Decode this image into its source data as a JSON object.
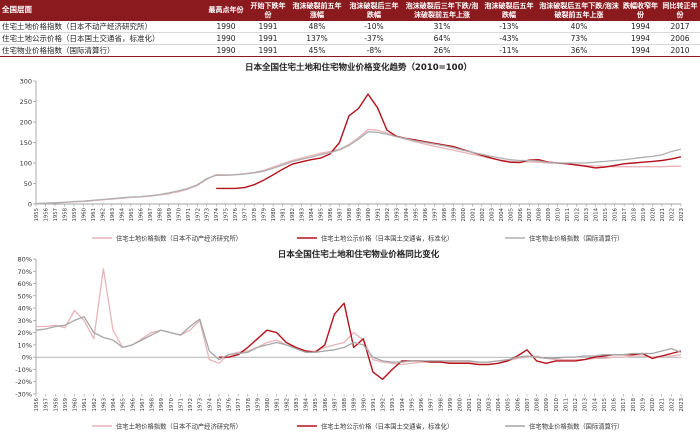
{
  "table": {
    "headers": [
      "全国层面",
      "最高点年份",
      "开始下跌年份",
      "泡沫破裂前五年涨幅",
      "泡沫破裂后三年跌幅",
      "泡沫破裂后三年下跌/泡沫破裂前五年上涨",
      "泡沫破裂后五年跌幅",
      "泡沫破裂后五年下跌/泡沫破裂前五年上涨",
      "跌幅收窄年份",
      "同比转正年份"
    ],
    "rows": [
      [
        "住宅土地价格指数（日本不动产经济研究所）",
        "1990",
        "1991",
        "48%",
        "-10%",
        "31%",
        "-13%",
        "40%",
        "1994",
        "2017"
      ],
      [
        "住宅土地公示价格（日本国土交通省，标准化）",
        "1990",
        "1991",
        "137%",
        "-37%",
        "64%",
        "-43%",
        "73%",
        "1994",
        "2006"
      ],
      [
        "住宅物业价格指数（国际清算行）",
        "1990",
        "1991",
        "45%",
        "-8%",
        "26%",
        "-11%",
        "36%",
        "1994",
        "2010"
      ]
    ]
  },
  "chart_data": [
    {
      "type": "line",
      "title": "日本全国住宅土地和住宅物业价格变化趋势（2010=100）",
      "xlabel": "",
      "ylabel": "",
      "ylim": [
        0,
        300
      ],
      "yticks": [
        0,
        50,
        100,
        150,
        200,
        250,
        300
      ],
      "ytick_labels": [
        "0",
        "50",
        "100",
        "150",
        "200",
        "250",
        "300"
      ],
      "x": [
        1955,
        1956,
        1957,
        1958,
        1959,
        1960,
        1961,
        1962,
        1963,
        1964,
        1965,
        1966,
        1967,
        1968,
        1969,
        1970,
        1971,
        1972,
        1973,
        1974,
        1975,
        1976,
        1977,
        1978,
        1979,
        1980,
        1981,
        1982,
        1983,
        1984,
        1985,
        1986,
        1987,
        1988,
        1989,
        1990,
        1991,
        1992,
        1993,
        1994,
        1995,
        1996,
        1997,
        1998,
        1999,
        2000,
        2001,
        2002,
        2003,
        2004,
        2005,
        2006,
        2007,
        2008,
        2009,
        2010,
        2011,
        2012,
        2013,
        2014,
        2015,
        2016,
        2017,
        2018,
        2019,
        2020,
        2021,
        2022,
        2023
      ],
      "grid": false,
      "legend_position": "bottom",
      "series": [
        {
          "name": "住宅土地价格指数（日本不动产经济研究所）",
          "color": "#e8b4b8",
          "values": [
            1,
            2,
            3,
            4,
            5,
            6,
            8,
            10,
            12,
            14,
            16,
            17,
            19,
            22,
            25,
            30,
            36,
            45,
            60,
            72,
            71,
            72,
            74,
            77,
            82,
            90,
            98,
            106,
            112,
            118,
            124,
            128,
            134,
            145,
            162,
            182,
            180,
            173,
            165,
            158,
            152,
            146,
            141,
            136,
            131,
            126,
            121,
            116,
            111,
            107,
            104,
            103,
            103,
            102,
            100,
            100,
            98,
            96,
            94,
            93,
            92,
            91,
            91,
            91,
            91,
            91,
            91,
            92,
            92
          ]
        },
        {
          "name": "住宅土地公示价格（日本国土交通省，标准化）",
          "color": "#b3121b",
          "values": [
            null,
            null,
            null,
            null,
            null,
            null,
            null,
            null,
            null,
            null,
            null,
            null,
            null,
            null,
            null,
            null,
            null,
            null,
            null,
            38,
            38,
            38,
            40,
            47,
            58,
            71,
            85,
            97,
            103,
            108,
            112,
            122,
            150,
            215,
            233,
            268,
            235,
            180,
            165,
            160,
            156,
            152,
            148,
            144,
            140,
            133,
            126,
            119,
            112,
            106,
            102,
            101,
            107,
            108,
            102,
            100,
            98,
            95,
            92,
            88,
            90,
            94,
            98,
            100,
            102,
            104,
            106,
            110,
            115
          ]
        },
        {
          "name": "住宅物业价格指数（国际清算行）",
          "color": "#b0b0b0",
          "values": [
            1,
            2,
            3,
            4,
            6,
            7,
            9,
            11,
            13,
            15,
            17,
            18,
            20,
            23,
            27,
            32,
            38,
            47,
            62,
            70,
            70,
            71,
            73,
            76,
            80,
            87,
            95,
            103,
            109,
            114,
            120,
            125,
            132,
            143,
            158,
            176,
            175,
            170,
            164,
            159,
            154,
            150,
            146,
            142,
            137,
            131,
            126,
            121,
            116,
            112,
            108,
            106,
            106,
            105,
            101,
            100,
            100,
            100,
            100,
            102,
            104,
            106,
            108,
            111,
            114,
            116,
            120,
            128,
            134
          ]
        }
      ]
    },
    {
      "type": "line",
      "title": "日本全国住宅土地和住宅物业价格同比变化",
      "xlabel": "",
      "ylabel": "",
      "ylim": [
        -30,
        80
      ],
      "yticks": [
        -30,
        -20,
        -10,
        0,
        10,
        20,
        30,
        40,
        50,
        60,
        70,
        80
      ],
      "ytick_labels": [
        "-30%",
        "-20%",
        "-10%",
        "0%",
        "10%",
        "20%",
        "30%",
        "40%",
        "50%",
        "60%",
        "70%",
        "80%"
      ],
      "x": [
        1956,
        1957,
        1958,
        1959,
        1960,
        1961,
        1962,
        1963,
        1964,
        1965,
        1966,
        1967,
        1968,
        1969,
        1970,
        1971,
        1972,
        1973,
        1974,
        1975,
        1976,
        1977,
        1978,
        1979,
        1980,
        1981,
        1982,
        1983,
        1984,
        1985,
        1986,
        1987,
        1988,
        1989,
        1990,
        1991,
        1992,
        1993,
        1994,
        1995,
        1996,
        1997,
        1998,
        1999,
        2000,
        2001,
        2002,
        2003,
        2004,
        2005,
        2006,
        2007,
        2008,
        2009,
        2010,
        2011,
        2012,
        2013,
        2014,
        2015,
        2016,
        2017,
        2018,
        2019,
        2020,
        2021,
        2022,
        2023
      ],
      "grid": false,
      "legend_position": "bottom",
      "series": [
        {
          "name": "住宅土地价格指数（日本不动产经济研究所）",
          "color": "#e8b4b8",
          "values": [
            25,
            25,
            26,
            24,
            38,
            30,
            15,
            72,
            22,
            8,
            10,
            15,
            20,
            22,
            20,
            18,
            22,
            30,
            -2,
            -5,
            2,
            4,
            5,
            8,
            12,
            14,
            10,
            8,
            5,
            5,
            8,
            10,
            12,
            20,
            14,
            -2,
            -4,
            -5,
            -6,
            -5,
            -4,
            -4,
            -4,
            -4,
            -4,
            -4,
            -4,
            -4,
            -3,
            -3,
            -1,
            0,
            1,
            -1,
            -2,
            -2,
            -2,
            -2,
            -1,
            -1,
            0,
            0,
            1,
            1,
            0,
            1,
            1,
            2
          ]
        },
        {
          "name": "住宅土地公示价格（日本国土交通省，标准化）",
          "color": "#b3121b",
          "values": [
            null,
            null,
            null,
            null,
            null,
            null,
            null,
            null,
            null,
            null,
            null,
            null,
            null,
            null,
            null,
            null,
            null,
            null,
            null,
            0,
            0,
            2,
            8,
            15,
            22,
            20,
            12,
            8,
            5,
            4,
            10,
            35,
            44,
            8,
            15,
            -12,
            -18,
            -10,
            -3,
            -3,
            -3,
            -4,
            -4,
            -5,
            -5,
            -5,
            -6,
            -6,
            -5,
            -3,
            1,
            6,
            -3,
            -5,
            -3,
            -3,
            -3,
            -2,
            0,
            1,
            2,
            2,
            2,
            3,
            -1,
            1,
            3,
            5
          ]
        },
        {
          "name": "住宅物业价格指数（国际清算行）",
          "color": "#a6a6a6",
          "values": [
            22,
            23,
            25,
            26,
            30,
            33,
            20,
            16,
            14,
            8,
            10,
            14,
            18,
            22,
            20,
            18,
            25,
            31,
            5,
            -2,
            2,
            3,
            4,
            8,
            10,
            12,
            10,
            7,
            4,
            4,
            5,
            6,
            8,
            12,
            10,
            0,
            -3,
            -4,
            -4,
            -3,
            -3,
            -3,
            -3,
            -3,
            -3,
            -3,
            -4,
            -4,
            -3,
            -2,
            0,
            1,
            0,
            -1,
            -1,
            0,
            0,
            1,
            1,
            2,
            2,
            2,
            3,
            3,
            3,
            5,
            7,
            4
          ]
        }
      ]
    }
  ]
}
